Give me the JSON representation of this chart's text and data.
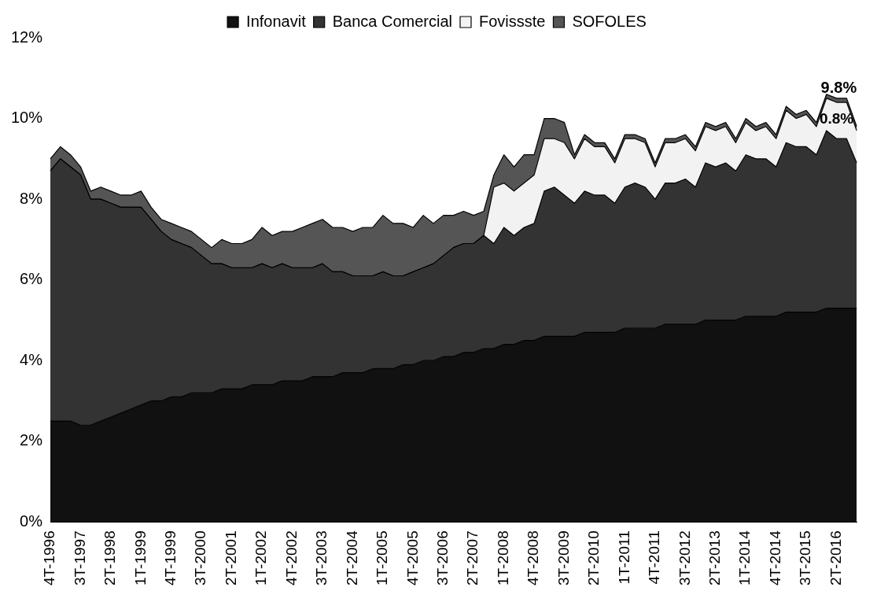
{
  "chart_data": {
    "type": "area",
    "stacked": true,
    "legend": "top",
    "grid": false,
    "marker": "none",
    "categories": [
      "4T-1996",
      null,
      null,
      "3T-1997",
      null,
      null,
      "2T-1998",
      null,
      null,
      "1T-1999",
      null,
      null,
      "4T-1999",
      null,
      null,
      "3T-2000",
      null,
      null,
      "2T-2001",
      null,
      null,
      "1T-2002",
      null,
      null,
      "4T-2002",
      null,
      null,
      "3T-2003",
      null,
      null,
      "2T-2004",
      null,
      null,
      "1T-2005",
      null,
      null,
      "4T-2005",
      null,
      null,
      "3T-2006",
      null,
      null,
      "2T-2007",
      null,
      null,
      "1T-2008",
      null,
      null,
      "4T-2008",
      null,
      null,
      "3T-2009",
      null,
      null,
      "2T-2010",
      null,
      null,
      "1T-2011",
      null,
      null,
      "4T-2011",
      null,
      null,
      "3T-2012",
      null,
      null,
      "2T-2013",
      null,
      null,
      "1T-2014",
      null,
      null,
      "4T-2014",
      null,
      null,
      "3T-2015",
      null,
      null,
      "2T-2016",
      null,
      null
    ],
    "ylim": [
      0,
      12
    ],
    "yticks": [
      {
        "value": 0,
        "label": "0%"
      },
      {
        "value": 2,
        "label": "2%"
      },
      {
        "value": 4,
        "label": "4%"
      },
      {
        "value": 6,
        "label": "6%"
      },
      {
        "value": 8,
        "label": "8%"
      },
      {
        "value": 10,
        "label": "10%"
      },
      {
        "value": 12,
        "label": "12%"
      }
    ],
    "annotations": [
      "9.8%",
      "0.8%"
    ],
    "series": [
      {
        "name": "Infonavit",
        "color": "#111111",
        "values": [
          2.5,
          2.5,
          2.5,
          2.4,
          2.4,
          2.5,
          2.6,
          2.7,
          2.8,
          2.9,
          3.0,
          3.0,
          3.1,
          3.1,
          3.2,
          3.2,
          3.2,
          3.3,
          3.3,
          3.3,
          3.4,
          3.4,
          3.4,
          3.5,
          3.5,
          3.5,
          3.6,
          3.6,
          3.6,
          3.7,
          3.7,
          3.7,
          3.8,
          3.8,
          3.8,
          3.9,
          3.9,
          4.0,
          4.0,
          4.1,
          4.1,
          4.2,
          4.2,
          4.3,
          4.3,
          4.4,
          4.4,
          4.5,
          4.5,
          4.6,
          4.6,
          4.6,
          4.6,
          4.7,
          4.7,
          4.7,
          4.7,
          4.8,
          4.8,
          4.8,
          4.8,
          4.9,
          4.9,
          4.9,
          4.9,
          5.0,
          5.0,
          5.0,
          5.0,
          5.1,
          5.1,
          5.1,
          5.1,
          5.2,
          5.2,
          5.2,
          5.2,
          5.3,
          5.3,
          5.3,
          5.3
        ]
      },
      {
        "name": "Banca Comercial",
        "color": "#333333",
        "values": [
          6.2,
          6.5,
          6.3,
          6.2,
          5.6,
          5.5,
          5.3,
          5.1,
          5.0,
          4.9,
          4.5,
          4.2,
          3.9,
          3.8,
          3.6,
          3.4,
          3.2,
          3.1,
          3.0,
          3.0,
          2.9,
          3.0,
          2.9,
          2.9,
          2.8,
          2.8,
          2.7,
          2.8,
          2.6,
          2.5,
          2.4,
          2.4,
          2.3,
          2.4,
          2.3,
          2.2,
          2.3,
          2.3,
          2.4,
          2.5,
          2.7,
          2.7,
          2.7,
          2.8,
          2.6,
          2.9,
          2.7,
          2.8,
          2.9,
          3.6,
          3.7,
          3.5,
          3.3,
          3.5,
          3.4,
          3.4,
          3.2,
          3.5,
          3.6,
          3.5,
          3.2,
          3.5,
          3.5,
          3.6,
          3.4,
          3.9,
          3.8,
          3.9,
          3.7,
          4.0,
          3.9,
          3.9,
          3.7,
          4.2,
          4.1,
          4.1,
          3.9,
          4.4,
          4.2,
          4.2,
          3.6
        ]
      },
      {
        "name": "Fovissste",
        "color": "#f2f2f2",
        "values": [
          0,
          0,
          0,
          0,
          0,
          0,
          0,
          0,
          0,
          0,
          0,
          0,
          0,
          0,
          0,
          0,
          0,
          0,
          0,
          0,
          0,
          0,
          0,
          0,
          0,
          0,
          0,
          0,
          0,
          0,
          0,
          0,
          0,
          0,
          0,
          0,
          0,
          0,
          0,
          0,
          0,
          0,
          0,
          0,
          1.4,
          1.1,
          1.1,
          1.1,
          1.2,
          1.3,
          1.2,
          1.3,
          1.1,
          1.3,
          1.2,
          1.2,
          1.0,
          1.2,
          1.1,
          1.1,
          0.8,
          1.0,
          1.0,
          1.0,
          0.9,
          0.9,
          0.9,
          0.9,
          0.7,
          0.8,
          0.7,
          0.8,
          0.7,
          0.8,
          0.7,
          0.8,
          0.7,
          0.8,
          0.9,
          0.9,
          0.8
        ]
      },
      {
        "name": "SOFOLES",
        "color": "#555555",
        "values": [
          0.3,
          0.3,
          0.3,
          0.2,
          0.2,
          0.3,
          0.3,
          0.3,
          0.3,
          0.4,
          0.3,
          0.3,
          0.4,
          0.4,
          0.4,
          0.4,
          0.4,
          0.6,
          0.6,
          0.6,
          0.7,
          0.9,
          0.8,
          0.8,
          0.9,
          1.0,
          1.1,
          1.1,
          1.1,
          1.1,
          1.1,
          1.2,
          1.2,
          1.4,
          1.3,
          1.3,
          1.1,
          1.3,
          1.0,
          1.0,
          0.8,
          0.8,
          0.7,
          0.6,
          0.3,
          0.7,
          0.6,
          0.7,
          0.5,
          0.5,
          0.5,
          0.5,
          0.1,
          0.1,
          0.1,
          0.1,
          0.1,
          0.1,
          0.1,
          0.1,
          0.1,
          0.1,
          0.1,
          0.1,
          0.1,
          0.1,
          0.1,
          0.1,
          0.1,
          0.1,
          0.1,
          0.1,
          0.1,
          0.1,
          0.1,
          0.1,
          0.1,
          0.1,
          0.1,
          0.1,
          0.1
        ]
      }
    ]
  }
}
